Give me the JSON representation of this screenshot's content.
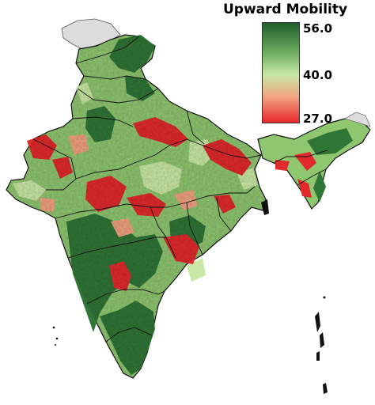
{
  "legend": {
    "title": "Upward Mobility",
    "max_label": "56.0",
    "mid_label": "40.0",
    "min_label": "27.0",
    "min_value": 27.0,
    "mid_value": 40.0,
    "max_value": 56.0,
    "colors": {
      "high": "#1f5e2b",
      "mid_high": "#6fae5f",
      "mid": "#c9e8a4",
      "mid_low": "#f0a27f",
      "low": "#e8262a"
    }
  },
  "map": {
    "region": "India",
    "no_data_color": "#dcdcdc",
    "border_color": "#111111"
  }
}
